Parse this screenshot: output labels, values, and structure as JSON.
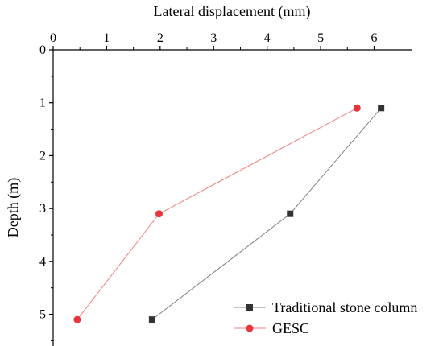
{
  "chart_data": {
    "type": "line",
    "xlabel": "Lateral displacement (mm)",
    "ylabel": "Depth (m)",
    "x_axis_position": "top",
    "y_axis_inverted": true,
    "xlim": [
      0,
      6.7
    ],
    "ylim": [
      0,
      5.6
    ],
    "x_ticks": [
      0,
      1,
      2,
      3,
      4,
      5,
      6
    ],
    "y_ticks": [
      0,
      1,
      2,
      3,
      4,
      5
    ],
    "grid": false,
    "legend_placement": "bottom-right",
    "series": [
      {
        "name": "Traditional stone column",
        "color": "#808080",
        "marker_color": "#333333",
        "marker": "square",
        "points": [
          {
            "x": 6.13,
            "y": 1.1
          },
          {
            "x": 4.43,
            "y": 3.1
          },
          {
            "x": 1.85,
            "y": 5.1
          }
        ]
      },
      {
        "name": "GESC",
        "color": "#f08080",
        "marker_color": "#e8343a",
        "marker": "circle",
        "points": [
          {
            "x": 5.68,
            "y": 1.1
          },
          {
            "x": 1.98,
            "y": 3.1
          },
          {
            "x": 0.45,
            "y": 5.1
          }
        ]
      }
    ]
  }
}
